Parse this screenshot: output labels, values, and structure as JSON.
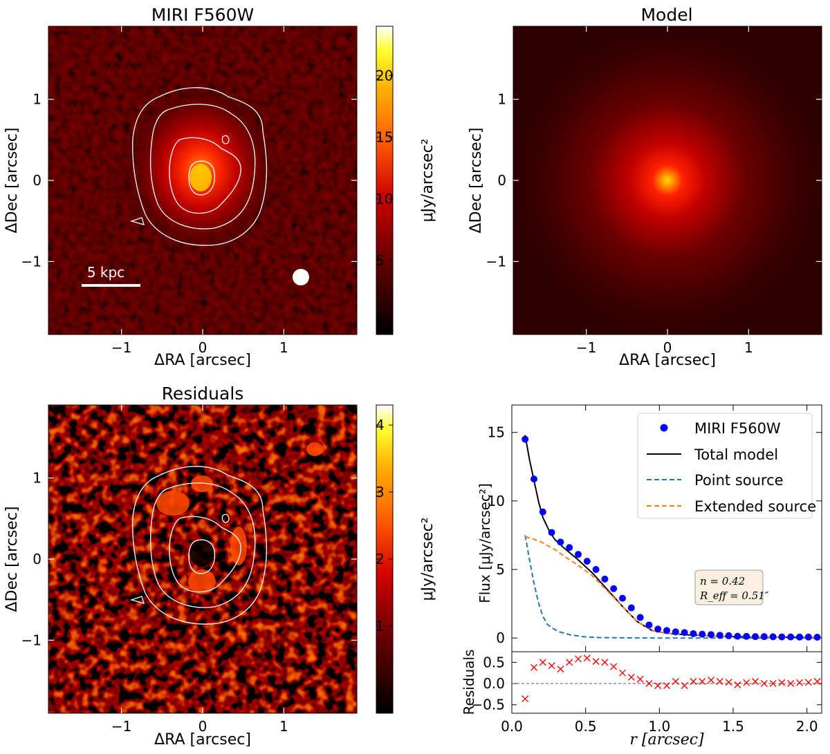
{
  "figure": {
    "panels": {
      "data": {
        "title": "MIRI F560W",
        "xlabel": "ΔRA [arcsec]",
        "ylabel": "ΔDec [arcsec]",
        "x_ticks": [
          -1,
          0,
          1
        ],
        "y_ticks": [
          -1,
          0,
          1
        ],
        "extent": [
          -1.9,
          1.9
        ],
        "colorbar": {
          "label": "μJy/arcsec²",
          "ticks": [
            0,
            5,
            10,
            15,
            20
          ],
          "range": [
            -1,
            24
          ]
        },
        "scale_bar": {
          "label": "5 kpc"
        },
        "beam": "psf-beam"
      },
      "model": {
        "title": "Model",
        "xlabel": "ΔRA [arcsec]",
        "ylabel": "ΔDec [arcsec]",
        "x_ticks": [
          -1,
          0,
          1
        ],
        "y_ticks": [
          -1,
          0,
          1
        ]
      },
      "residuals": {
        "title": "Residuals",
        "xlabel": "ΔRA [arcsec]",
        "ylabel": "ΔDec [arcsec]",
        "x_ticks": [
          -1,
          0,
          1
        ],
        "y_ticks": [
          -1,
          0,
          1
        ],
        "colorbar": {
          "label": "μJy/arcsec²",
          "ticks": [
            0,
            1,
            2,
            3,
            4
          ],
          "range": [
            -0.3,
            4.3
          ]
        }
      }
    },
    "annotation": {
      "n": "n = 0.42",
      "reff": "R_eff = 0.51″"
    }
  },
  "chart_data": {
    "type": "line",
    "title": "",
    "xlabel": "r [arcsec]",
    "ylabel": "Flux [μJy/arcsec²]",
    "xlim": [
      0,
      2.1
    ],
    "ylim": [
      -1,
      17
    ],
    "x_ticks": [
      0.0,
      0.5,
      1.0,
      1.5,
      2.0
    ],
    "y_ticks": [
      0,
      5,
      10,
      15
    ],
    "legend_position": "top-right",
    "series": [
      {
        "name": "MIRI F560W",
        "kind": "points",
        "color": "#0000ff",
        "x": [
          0.09,
          0.15,
          0.21,
          0.27,
          0.33,
          0.39,
          0.45,
          0.51,
          0.57,
          0.63,
          0.69,
          0.75,
          0.81,
          0.87,
          0.93,
          0.99,
          1.05,
          1.11,
          1.17,
          1.23,
          1.29,
          1.35,
          1.41,
          1.47,
          1.53,
          1.59,
          1.65,
          1.71,
          1.77,
          1.83,
          1.89,
          1.95,
          2.01,
          2.07
        ],
        "y": [
          14.5,
          11.6,
          9.2,
          7.7,
          7.0,
          6.6,
          6.1,
          5.6,
          5.0,
          4.3,
          3.6,
          2.9,
          2.2,
          1.5,
          0.95,
          0.65,
          0.55,
          0.45,
          0.4,
          0.32,
          0.28,
          0.25,
          0.2,
          0.17,
          0.13,
          0.12,
          0.1,
          0.1,
          0.09,
          0.08,
          0.08,
          0.07,
          0.07,
          0.06
        ]
      },
      {
        "name": "Total model",
        "kind": "line",
        "color": "#000000",
        "x": [
          0.09,
          0.12,
          0.15,
          0.18,
          0.21,
          0.25,
          0.29,
          0.35,
          0.45,
          0.55,
          0.65,
          0.75,
          0.85,
          0.95,
          1.05,
          1.2,
          1.4,
          1.6,
          1.8,
          2.0,
          2.08
        ],
        "y": [
          14.8,
          13.0,
          11.5,
          10.0,
          8.8,
          7.9,
          7.2,
          6.6,
          5.7,
          4.7,
          3.5,
          2.3,
          1.2,
          0.55,
          0.35,
          0.22,
          0.12,
          0.08,
          0.06,
          0.05,
          0.05
        ]
      },
      {
        "name": "Point source",
        "kind": "dashed",
        "color": "#1f77b4",
        "x": [
          0.09,
          0.12,
          0.15,
          0.18,
          0.21,
          0.24,
          0.27,
          0.32,
          0.4,
          0.5,
          0.6,
          0.8,
          1.0,
          1.5,
          2.08
        ],
        "y": [
          7.5,
          5.7,
          4.0,
          2.6,
          1.6,
          1.0,
          0.75,
          0.45,
          0.22,
          0.08,
          0.03,
          0.01,
          0.0,
          0.0,
          0.0
        ]
      },
      {
        "name": "Extended source",
        "kind": "dashed",
        "color": "#ff7f0e",
        "x": [
          0.09,
          0.15,
          0.2,
          0.25,
          0.3,
          0.35,
          0.45,
          0.55,
          0.65,
          0.75,
          0.85,
          0.95,
          1.05,
          1.2,
          1.4,
          1.6,
          1.8,
          2.08
        ],
        "y": [
          7.4,
          7.2,
          7.0,
          6.7,
          6.4,
          6.0,
          5.3,
          4.5,
          3.4,
          2.3,
          1.2,
          0.55,
          0.35,
          0.22,
          0.12,
          0.08,
          0.06,
          0.05
        ]
      }
    ],
    "residuals": {
      "ylabel": "Residuals",
      "ylim": [
        -0.7,
        0.75
      ],
      "y_ticks": [
        -0.5,
        0.0,
        0.5
      ],
      "color": "#ff0000",
      "x": [
        0.09,
        0.15,
        0.21,
        0.27,
        0.33,
        0.39,
        0.45,
        0.51,
        0.57,
        0.63,
        0.69,
        0.75,
        0.81,
        0.87,
        0.93,
        0.99,
        1.05,
        1.11,
        1.17,
        1.23,
        1.29,
        1.35,
        1.41,
        1.47,
        1.53,
        1.59,
        1.65,
        1.71,
        1.77,
        1.83,
        1.89,
        1.95,
        2.01,
        2.07
      ],
      "y": [
        -0.36,
        0.38,
        0.5,
        0.42,
        0.34,
        0.5,
        0.58,
        0.6,
        0.52,
        0.5,
        0.4,
        0.25,
        0.15,
        0.1,
        0.0,
        -0.05,
        -0.05,
        0.05,
        -0.05,
        0.05,
        0.05,
        0.08,
        0.05,
        0.03,
        -0.03,
        0.02,
        0.05,
        0.0,
        0.0,
        0.02,
        0.0,
        0.02,
        0.03,
        0.05
      ]
    }
  }
}
